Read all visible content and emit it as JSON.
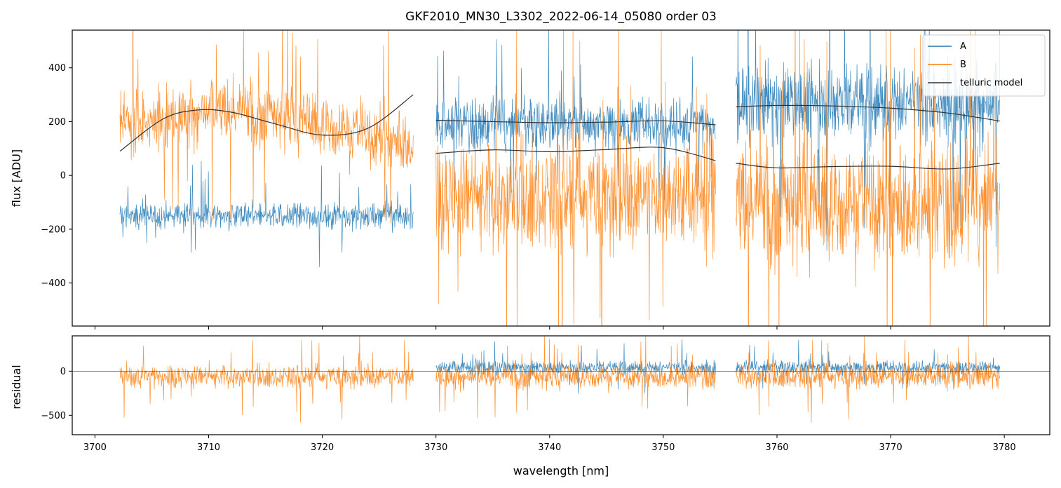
{
  "chart_data": {
    "type": "line",
    "title": "GKF2010_MN30_L3302_2022-06-14_05080  order 03",
    "xlabel": "wavelength [nm]",
    "xlim": [
      3698,
      3784
    ],
    "xticks": [
      3700,
      3710,
      3720,
      3730,
      3740,
      3750,
      3760,
      3770,
      3780
    ],
    "segments": [
      [
        3702.2,
        3728.0
      ],
      [
        3730.0,
        3754.6
      ],
      [
        3756.4,
        3779.6
      ]
    ],
    "colors": {
      "A": "#1f77b4",
      "B": "#ff7f0e",
      "model": "#333333"
    },
    "top_panel": {
      "ylabel": "flux [ADU]",
      "ylim": [
        -560,
        540
      ],
      "yticks": [
        -400,
        -200,
        0,
        200,
        400
      ],
      "legend": {
        "position": "top-right",
        "entries": [
          "A",
          "B",
          "telluric model"
        ]
      },
      "series": [
        {
          "name": "A",
          "segment_levels": [
            -150,
            190,
            270
          ],
          "noise_amplitude": [
            55,
            110,
            170
          ]
        },
        {
          "name": "B",
          "segment_levels": [
            180,
            -80,
            -100
          ],
          "noise_amplitude": [
            130,
            230,
            250
          ]
        }
      ],
      "telluric_model": [
        {
          "x": [
            3702.2,
            3706,
            3709,
            3712,
            3716,
            3720,
            3724,
            3728
          ],
          "y": [
            90,
            210,
            243,
            235,
            190,
            150,
            175,
            300
          ]
        },
        {
          "x": [
            3730,
            3735,
            3740,
            3745,
            3750,
            3754.6
          ],
          "y": [
            205,
            200,
            196,
            198,
            203,
            188
          ]
        },
        {
          "x": [
            3730,
            3735,
            3740,
            3745,
            3750,
            3754.6
          ],
          "y": [
            82,
            95,
            88,
            96,
            103,
            55
          ]
        },
        {
          "x": [
            3756.4,
            3760,
            3765,
            3770,
            3775,
            3779.6
          ],
          "y": [
            255,
            260,
            258,
            250,
            232,
            202
          ]
        },
        {
          "x": [
            3756.4,
            3760,
            3765,
            3770,
            3775,
            3779.6
          ],
          "y": [
            45,
            28,
            33,
            34,
            24,
            45
          ]
        }
      ]
    },
    "bottom_panel": {
      "ylabel": "residual",
      "ylim": [
        -720,
        400
      ],
      "yticks": [
        -500,
        0
      ],
      "zero_line": 0
    }
  }
}
